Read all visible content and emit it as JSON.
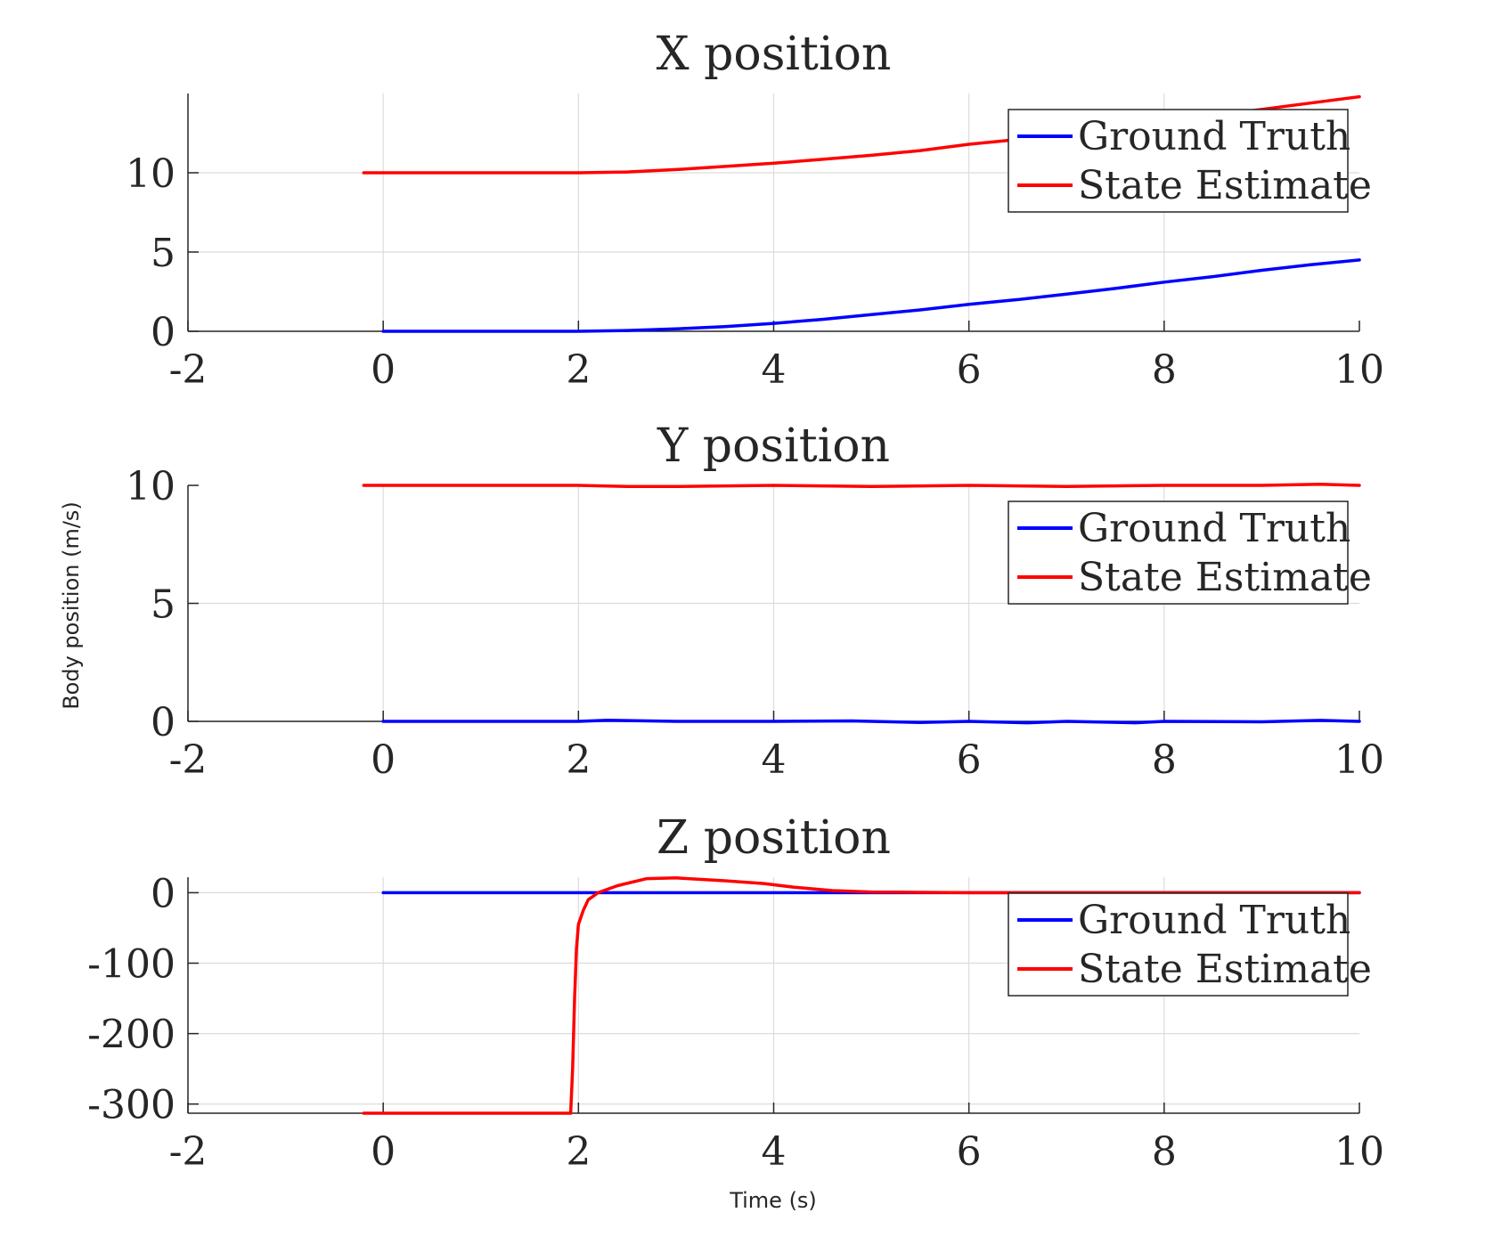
{
  "figure": {
    "ylabel": "Body position (m/s)",
    "xlabel": "Time (s)"
  },
  "colors": {
    "ground_truth": "#0000ff",
    "state_estimate": "#ff0000"
  },
  "chart_data": [
    {
      "type": "line",
      "title": "X position",
      "xlim": [
        -2,
        10
      ],
      "ylim": [
        0,
        15
      ],
      "xticks": [
        "-2",
        "0",
        "2",
        "4",
        "6",
        "8",
        "10"
      ],
      "yticks": [
        "0",
        "5",
        "10"
      ],
      "grid": true,
      "legend_position": "top-right",
      "series": [
        {
          "name": "Ground Truth",
          "color": "#0000ff",
          "x": [
            0,
            1,
            2,
            2.5,
            3,
            3.5,
            4,
            4.5,
            5,
            5.5,
            6,
            6.5,
            7,
            7.5,
            8,
            8.5,
            9,
            9.5,
            10
          ],
          "y": [
            0,
            0,
            0,
            0.05,
            0.15,
            0.3,
            0.5,
            0.75,
            1.05,
            1.35,
            1.7,
            2.0,
            2.35,
            2.7,
            3.1,
            3.45,
            3.85,
            4.2,
            4.5
          ]
        },
        {
          "name": "State Estimate",
          "color": "#ff0000",
          "x": [
            -0.2,
            0,
            1,
            2,
            2.5,
            3,
            3.5,
            4,
            4.5,
            5,
            5.5,
            6,
            6.5,
            7,
            7.5,
            8,
            8.5,
            9,
            9.5,
            10
          ],
          "y": [
            10,
            10,
            10,
            10,
            10.05,
            10.2,
            10.4,
            10.6,
            10.85,
            11.1,
            11.4,
            11.8,
            12.1,
            12.4,
            12.8,
            13.2,
            13.6,
            14.0,
            14.4,
            14.8
          ]
        }
      ]
    },
    {
      "type": "line",
      "title": "Y position",
      "xlim": [
        -2,
        10
      ],
      "ylim": [
        0,
        10
      ],
      "xticks": [
        "-2",
        "0",
        "2",
        "4",
        "6",
        "8",
        "10"
      ],
      "yticks": [
        "0",
        "5",
        "10"
      ],
      "grid": true,
      "legend_position": "top-right",
      "series": [
        {
          "name": "Ground Truth",
          "color": "#0000ff",
          "x": [
            0,
            1,
            2,
            2.3,
            3,
            4,
            4.8,
            5.5,
            6,
            6.6,
            7,
            7.7,
            8,
            9,
            9.6,
            10
          ],
          "y": [
            0,
            0,
            0,
            0.05,
            0,
            0,
            0.02,
            -0.05,
            0,
            -0.06,
            0,
            -0.06,
            0,
            -0.02,
            0.04,
            0
          ]
        },
        {
          "name": "State Estimate",
          "color": "#ff0000",
          "x": [
            -0.2,
            0,
            1,
            2,
            2.5,
            3,
            4,
            5,
            6,
            7,
            8,
            9,
            9.6,
            10
          ],
          "y": [
            10,
            10,
            10,
            10,
            9.95,
            9.95,
            10,
            9.95,
            10,
            9.95,
            10,
            10,
            10.05,
            10
          ]
        }
      ]
    },
    {
      "type": "line",
      "title": "Z position",
      "xlim": [
        -2,
        10
      ],
      "ylim": [
        -313,
        22
      ],
      "xticks": [
        "-2",
        "0",
        "2",
        "4",
        "6",
        "8",
        "10"
      ],
      "yticks": [
        "-300",
        "-200",
        "-100",
        "0"
      ],
      "grid": true,
      "legend_position": "top-right",
      "series": [
        {
          "name": "Ground Truth",
          "color": "#0000ff",
          "x": [
            0,
            10
          ],
          "y": [
            0,
            0
          ]
        },
        {
          "name": "State Estimate",
          "color": "#ff0000",
          "x": [
            -0.2,
            0,
            1,
            1.92,
            1.94,
            1.96,
            1.98,
            2.0,
            2.05,
            2.1,
            2.2,
            2.4,
            2.7,
            3.0,
            3.5,
            3.9,
            4.2,
            4.6,
            5.0,
            6.0,
            7.0,
            8.0,
            9.0,
            10.0
          ],
          "y": [
            -313,
            -313,
            -313,
            -313,
            -250,
            -150,
            -80,
            -45,
            -25,
            -10,
            0,
            10,
            20,
            21,
            17,
            13,
            8,
            3,
            1,
            0,
            0,
            0,
            0,
            0
          ]
        }
      ]
    }
  ]
}
